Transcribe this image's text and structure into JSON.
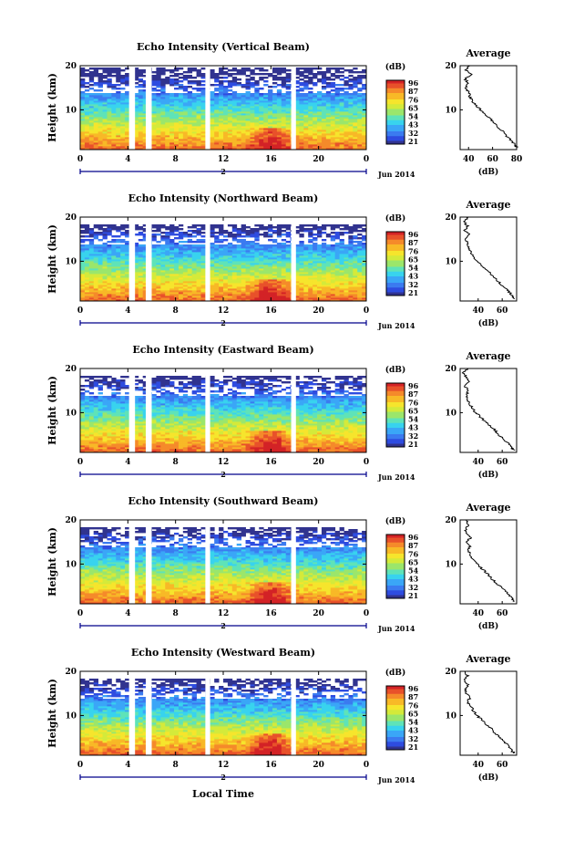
{
  "figure": {
    "date_label": "Jun 2014",
    "date_marker": "2",
    "xlabel": "Local Time",
    "colorbar_unit": "(dB)",
    "colorbar_ticks": [
      "96",
      "87",
      "76",
      "65",
      "54",
      "43",
      "32",
      "21"
    ],
    "avg_title": "Average",
    "avg_xlabel": "(dB)",
    "ylabel": "Height (km)",
    "colors": {
      "white": "#ffffff",
      "axis_blue": "#00008b"
    },
    "colormap": [
      "#31338f",
      "#2e4ce0",
      "#3b7bf0",
      "#3aa6f7",
      "#38d3ee",
      "#5fe3b8",
      "#9be66b",
      "#d4ea3a",
      "#f6e52c",
      "#f8b927",
      "#f58a2a",
      "#e8512a",
      "#d32226"
    ]
  },
  "chart_data": [
    {
      "type": "heatmap",
      "title": "Echo Intensity (Vertical Beam)",
      "xlabel": "",
      "ylabel": "Height (km)",
      "xticks": [
        "0",
        "4",
        "8",
        "12",
        "16",
        "20",
        "0"
      ],
      "yticks": [
        "10",
        "20"
      ],
      "xlim": [
        0,
        24
      ],
      "ylim": [
        1,
        20
      ],
      "colorbar": {
        "unit": "(dB)",
        "ticks": [
          96,
          87,
          76,
          65,
          54,
          43,
          32,
          21
        ]
      },
      "data_gaps_hours": [
        [
          4.1,
          4.6
        ],
        [
          5.5,
          6.0
        ],
        [
          10.5,
          10.9
        ],
        [
          17.7,
          18.1
        ]
      ],
      "upper_data_edge_km": 19.5,
      "average_profile": {
        "title": "Average",
        "xlabel": "(dB)",
        "xticks": [
          40,
          60,
          80
        ],
        "xlim": [
          33,
          80
        ],
        "height_km": [
          1.5,
          2,
          3,
          4,
          5,
          6,
          7,
          8,
          9,
          10,
          11,
          12,
          13,
          14,
          15,
          16,
          17,
          18,
          19,
          20
        ],
        "value_db": [
          80,
          79,
          76,
          72,
          69,
          65,
          62,
          58,
          54,
          50,
          46,
          43,
          41,
          40,
          38,
          40,
          37,
          43,
          38,
          41
        ]
      }
    },
    {
      "type": "heatmap",
      "title": "Echo Intensity (Northward Beam)",
      "xlabel": "",
      "ylabel": "Height (km)",
      "xticks": [
        "0",
        "4",
        "8",
        "12",
        "16",
        "20",
        "0"
      ],
      "yticks": [
        "10",
        "20"
      ],
      "xlim": [
        0,
        24
      ],
      "ylim": [
        1,
        20
      ],
      "colorbar": {
        "unit": "(dB)",
        "ticks": [
          96,
          87,
          76,
          65,
          54,
          43,
          32,
          21
        ]
      },
      "data_gaps_hours": [
        [
          4.1,
          4.6
        ],
        [
          5.5,
          6.0
        ],
        [
          10.5,
          10.9
        ],
        [
          17.7,
          18.1
        ]
      ],
      "upper_data_edge_km": 18.5,
      "average_profile": {
        "title": "Average",
        "xlabel": "(dB)",
        "xticks": [
          40,
          60
        ],
        "xlim": [
          25,
          72
        ],
        "height_km": [
          1.5,
          2,
          3,
          4,
          5,
          6,
          7,
          8,
          9,
          10,
          11,
          12,
          13,
          14,
          15,
          16,
          17,
          18,
          19,
          20
        ],
        "value_db": [
          70,
          69,
          66,
          62,
          58,
          55,
          51,
          47,
          43,
          39,
          36,
          34,
          32,
          31,
          30,
          33,
          29,
          31,
          28,
          32
        ]
      }
    },
    {
      "type": "heatmap",
      "title": "Echo Intensity (Eastward Beam)",
      "xlabel": "",
      "ylabel": "Height (km)",
      "xticks": [
        "0",
        "4",
        "8",
        "12",
        "16",
        "20",
        "0"
      ],
      "yticks": [
        "10",
        "20"
      ],
      "xlim": [
        0,
        24
      ],
      "ylim": [
        1,
        20
      ],
      "colorbar": {
        "unit": "(dB)",
        "ticks": [
          96,
          87,
          76,
          65,
          54,
          43,
          32,
          21
        ]
      },
      "data_gaps_hours": [
        [
          4.1,
          4.6
        ],
        [
          5.5,
          6.0
        ],
        [
          10.5,
          10.9
        ],
        [
          17.7,
          18.1
        ]
      ],
      "upper_data_edge_km": 18.5,
      "average_profile": {
        "title": "Average",
        "xlabel": "(dB)",
        "xticks": [
          40,
          60
        ],
        "xlim": [
          25,
          72
        ],
        "height_km": [
          1.5,
          2,
          3,
          4,
          5,
          6,
          7,
          8,
          9,
          10,
          11,
          12,
          13,
          14,
          15,
          16,
          17,
          18,
          19,
          20
        ],
        "value_db": [
          70,
          68,
          65,
          61,
          57,
          54,
          50,
          46,
          42,
          38,
          35,
          33,
          31,
          30,
          32,
          29,
          33,
          30,
          28,
          31
        ]
      }
    },
    {
      "type": "heatmap",
      "title": "Echo Intensity (Southward Beam)",
      "xlabel": "",
      "ylabel": "Height (km)",
      "xticks": [
        "0",
        "4",
        "8",
        "12",
        "16",
        "20",
        "0"
      ],
      "yticks": [
        "10",
        "20"
      ],
      "xlim": [
        0,
        24
      ],
      "ylim": [
        1,
        20
      ],
      "colorbar": {
        "unit": "(dB)",
        "ticks": [
          96,
          87,
          76,
          65,
          54,
          43,
          32,
          21
        ]
      },
      "data_gaps_hours": [
        [
          4.1,
          4.6
        ],
        [
          5.5,
          6.0
        ],
        [
          10.5,
          10.9
        ],
        [
          17.7,
          18.1
        ]
      ],
      "upper_data_edge_km": 18.5,
      "average_profile": {
        "title": "Average",
        "xlabel": "(dB)",
        "xticks": [
          40,
          60
        ],
        "xlim": [
          25,
          72
        ],
        "height_km": [
          1.5,
          2,
          3,
          4,
          5,
          6,
          7,
          8,
          9,
          10,
          11,
          12,
          13,
          14,
          15,
          16,
          17,
          18,
          19,
          20
        ],
        "value_db": [
          70,
          69,
          66,
          62,
          58,
          54,
          50,
          47,
          43,
          39,
          36,
          34,
          32,
          33,
          30,
          34,
          31,
          29,
          32,
          30
        ]
      }
    },
    {
      "type": "heatmap",
      "title": "Echo Intensity (Westward Beam)",
      "xlabel": "Local Time",
      "ylabel": "Height (km)",
      "xticks": [
        "0",
        "4",
        "8",
        "12",
        "16",
        "20",
        "0"
      ],
      "yticks": [
        "10",
        "20"
      ],
      "xlim": [
        0,
        24
      ],
      "ylim": [
        1,
        20
      ],
      "colorbar": {
        "unit": "(dB)",
        "ticks": [
          96,
          87,
          76,
          65,
          54,
          43,
          32,
          21
        ]
      },
      "data_gaps_hours": [
        [
          4.1,
          4.6
        ],
        [
          5.5,
          6.0
        ],
        [
          10.5,
          10.9
        ],
        [
          17.7,
          18.1
        ]
      ],
      "upper_data_edge_km": 18.5,
      "average_profile": {
        "title": "Average",
        "xlabel": "(dB)",
        "xticks": [
          40,
          60
        ],
        "xlim": [
          25,
          72
        ],
        "height_km": [
          1.5,
          2,
          3,
          4,
          5,
          6,
          7,
          8,
          9,
          10,
          11,
          12,
          13,
          14,
          15,
          16,
          17,
          18,
          19,
          20
        ],
        "value_db": [
          70,
          68,
          66,
          62,
          58,
          54,
          51,
          47,
          43,
          39,
          36,
          34,
          31,
          33,
          30,
          29,
          32,
          28,
          31,
          29
        ]
      }
    }
  ]
}
